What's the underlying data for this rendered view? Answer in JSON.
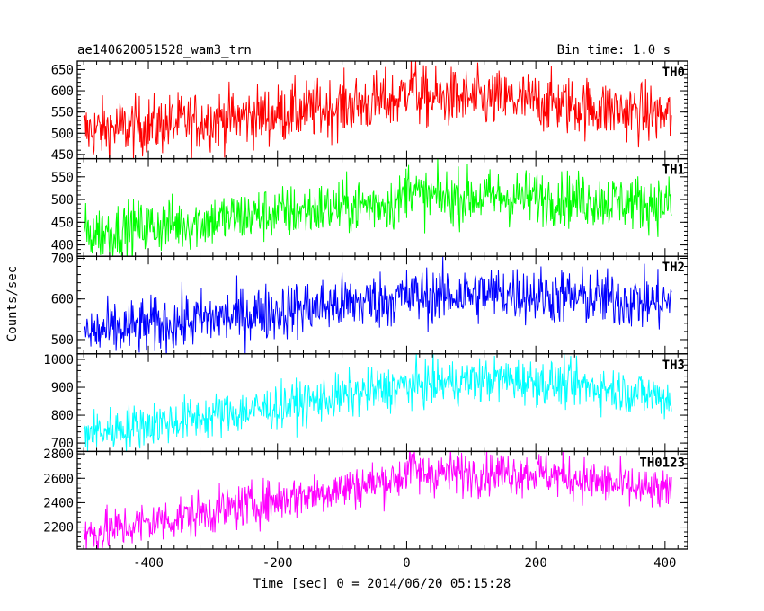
{
  "chart_data": {
    "type": "line",
    "title": "ae140620051528_wam3_trn",
    "bin_time": "Bin time: 1.0 s",
    "xlabel": "Time [sec] 0 = 2014/06/20 05:15:28",
    "ylabel": "Counts/sec",
    "xlim": [
      -510,
      435
    ],
    "x_ticks": [
      -400,
      -200,
      0,
      200,
      400
    ],
    "x_range": [
      -500,
      410
    ],
    "grid": false,
    "panels": [
      {
        "name": "TH0",
        "color": "#ff0000",
        "ylim": [
          440,
          670
        ],
        "yticks": [
          450,
          500,
          550,
          600,
          650
        ],
        "profile": [
          [
            -500,
            505
          ],
          [
            -200,
            545
          ],
          [
            -10,
            580
          ],
          [
            5,
            625
          ],
          [
            20,
            585
          ],
          [
            200,
            575
          ],
          [
            410,
            540
          ]
        ],
        "noise": 35
      },
      {
        "name": "TH1",
        "color": "#00ff00",
        "ylim": [
          375,
          590
        ],
        "yticks": [
          400,
          450,
          500,
          550
        ],
        "profile": [
          [
            -500,
            425
          ],
          [
            -200,
            470
          ],
          [
            -10,
            495
          ],
          [
            5,
            540
          ],
          [
            20,
            505
          ],
          [
            200,
            505
          ],
          [
            410,
            490
          ]
        ],
        "noise": 30
      },
      {
        "name": "TH2",
        "color": "#0000ff",
        "ylim": [
          465,
          705
        ],
        "yticks": [
          500,
          600,
          700
        ],
        "profile": [
          [
            -500,
            515
          ],
          [
            -200,
            570
          ],
          [
            0,
            605
          ],
          [
            150,
            615
          ],
          [
            250,
            605
          ],
          [
            410,
            590
          ]
        ],
        "noise": 35
      },
      {
        "name": "TH3",
        "color": "#00ffff",
        "ylim": [
          670,
          1020
        ],
        "yticks": [
          700,
          800,
          900,
          1000
        ],
        "profile": [
          [
            -500,
            735
          ],
          [
            -200,
            830
          ],
          [
            0,
            905
          ],
          [
            150,
            930
          ],
          [
            300,
            900
          ],
          [
            410,
            860
          ]
        ],
        "noise": 40
      },
      {
        "name": "TH0123",
        "color": "#ff00ff",
        "ylim": [
          2020,
          2820
        ],
        "yticks": [
          2200,
          2400,
          2600,
          2800
        ],
        "profile": [
          [
            -500,
            2140
          ],
          [
            -200,
            2420
          ],
          [
            -10,
            2600
          ],
          [
            5,
            2700
          ],
          [
            20,
            2640
          ],
          [
            200,
            2650
          ],
          [
            410,
            2470
          ]
        ],
        "noise": 90
      }
    ]
  }
}
